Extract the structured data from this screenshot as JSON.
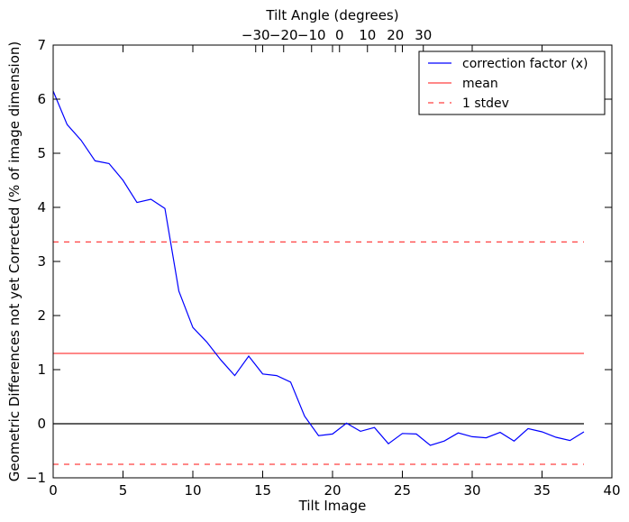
{
  "chart_data": {
    "type": "line",
    "xlabel": "Tilt Image",
    "ylabel": "Geometric Differences not yet Corrected (% of image dimension)",
    "top_xlabel": "Tilt Angle (degrees)",
    "xlim": [
      0,
      40
    ],
    "ylim": [
      -1,
      7
    ],
    "x_ticks": [
      0,
      5,
      10,
      15,
      20,
      25,
      30,
      35,
      40
    ],
    "y_ticks": [
      -1,
      0,
      1,
      2,
      3,
      4,
      5,
      6,
      7
    ],
    "top_ticks": [
      -30,
      -20,
      -10,
      0,
      10,
      20,
      30
    ],
    "top_tick_labels": [
      "−30",
      "−20",
      "−10",
      "0",
      "10",
      "20",
      "30"
    ],
    "top_axis_map": {
      "x_at_angle_zero": 20.5,
      "x_per_degree": 0.2
    },
    "x": [
      0,
      1,
      2,
      3,
      4,
      5,
      6,
      7,
      8,
      9,
      10,
      11,
      12,
      13,
      14,
      15,
      16,
      17,
      18,
      19,
      20,
      21,
      22,
      23,
      24,
      25,
      26,
      27,
      28,
      29,
      30,
      31,
      32,
      33,
      34,
      35,
      36,
      37,
      38
    ],
    "series": [
      {
        "name": "correction factor (x)",
        "color": "#0000ff",
        "style": "solid",
        "values": [
          6.15,
          5.53,
          5.24,
          4.86,
          4.81,
          4.5,
          4.09,
          4.15,
          3.98,
          2.45,
          1.78,
          1.51,
          1.18,
          0.89,
          1.25,
          0.92,
          0.89,
          0.77,
          0.14,
          -0.22,
          -0.19,
          0.01,
          -0.14,
          -0.07,
          -0.37,
          -0.18,
          -0.19,
          -0.4,
          -0.32,
          -0.17,
          -0.24,
          -0.26,
          -0.16,
          -0.32,
          -0.09,
          -0.15,
          -0.25,
          -0.31,
          -0.15
        ]
      },
      {
        "name": "mean",
        "color": "#ff4040",
        "style": "solid",
        "y": 1.3,
        "x_range": [
          0,
          38
        ]
      },
      {
        "name": "1 stdev",
        "color": "#ff4040",
        "style": "dashed",
        "y_values": [
          3.36,
          -0.75
        ],
        "x_range": [
          0,
          38
        ]
      }
    ],
    "zero_line": {
      "y": 0,
      "color": "#000000",
      "x_range": [
        0,
        38
      ]
    },
    "legend_position": "top-right",
    "grid": false
  }
}
